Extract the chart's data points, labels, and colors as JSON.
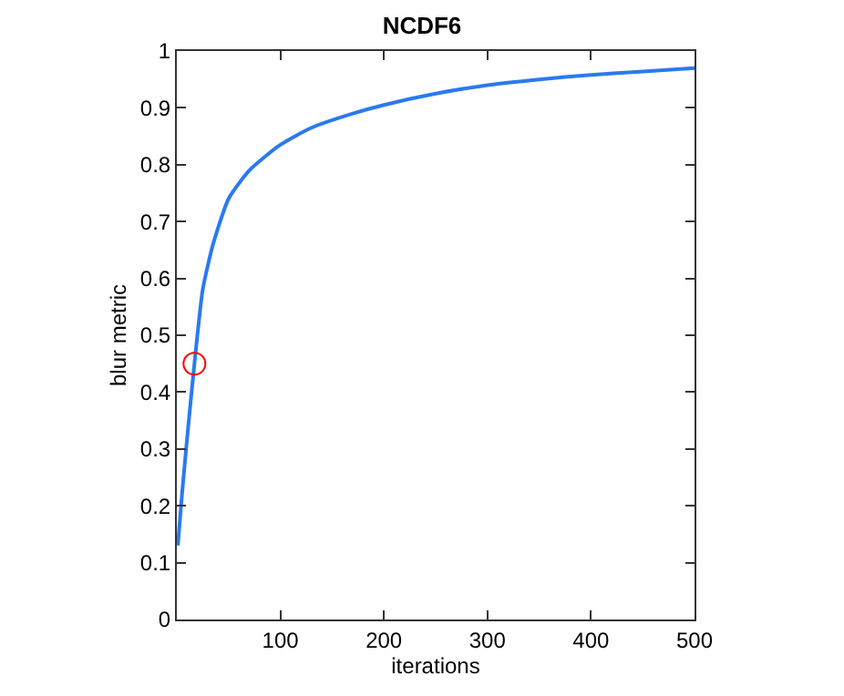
{
  "chart_data": {
    "type": "line",
    "title": "NCDF6",
    "xlabel": "iterations",
    "ylabel": "blur metric",
    "xlim": [
      0,
      500
    ],
    "xticks": [
      100,
      200,
      300,
      400,
      500
    ],
    "ylim": [
      0,
      1
    ],
    "yticks": [
      0,
      0.1,
      0.2,
      0.3,
      0.4,
      0.5,
      0.6,
      0.7,
      0.8,
      0.9,
      1
    ],
    "grid": false,
    "marker": "none",
    "line_style": "solid",
    "series": [
      {
        "color": "#2a7af0",
        "x": [
          1,
          5,
          10,
          17,
          25,
          35,
          50,
          70,
          100,
          130,
          170,
          200,
          250,
          300,
          350,
          400,
          450,
          500
        ],
        "values": [
          0.13,
          0.22,
          0.32,
          0.45,
          0.58,
          0.66,
          0.74,
          0.79,
          0.835,
          0.865,
          0.89,
          0.905,
          0.925,
          0.94,
          0.95,
          0.958,
          0.964,
          0.97
        ]
      },
      {
        "type": "scatter",
        "marker": "circle",
        "color": "#ff0000",
        "x": [
          17
        ],
        "values": [
          0.45
        ]
      }
    ]
  }
}
